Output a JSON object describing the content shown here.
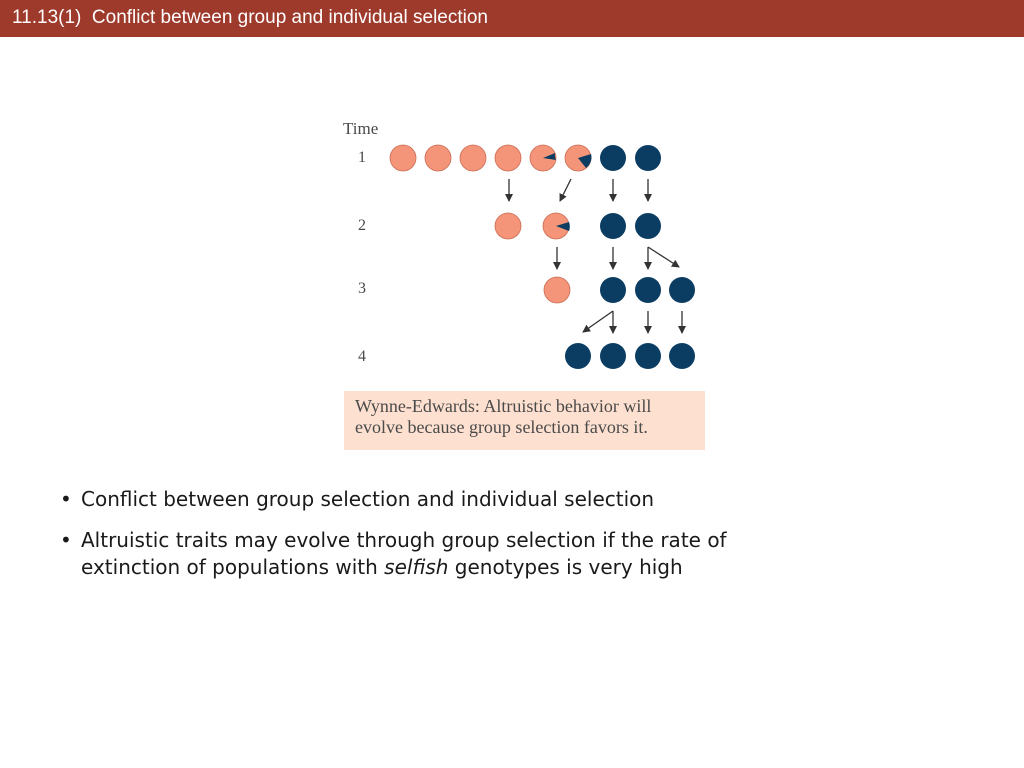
{
  "slide": {
    "title": "11.13(1)  Conflict between group and individual selection"
  },
  "figure": {
    "time_label": "Time",
    "time_steps": [
      "1",
      "2",
      "3",
      "4"
    ],
    "colors": {
      "altruistic": "#f4957a",
      "selfish": "#0b3d63",
      "arrow": "#333333",
      "caption_bg": "#fde0cf"
    },
    "caption_lines": [
      "Wynne-Edwards: Altruistic behavior will",
      "evolve because group selection favors it."
    ]
  },
  "bullets": {
    "mark": "•",
    "item1": "Conflict between group selection and individual selection",
    "item2_line1": "Altruistic traits may evolve through group selection if the rate of",
    "item2_pre": "extinction of populations with ",
    "item2_em": "selfish",
    "item2_post": " genotypes is very high"
  }
}
